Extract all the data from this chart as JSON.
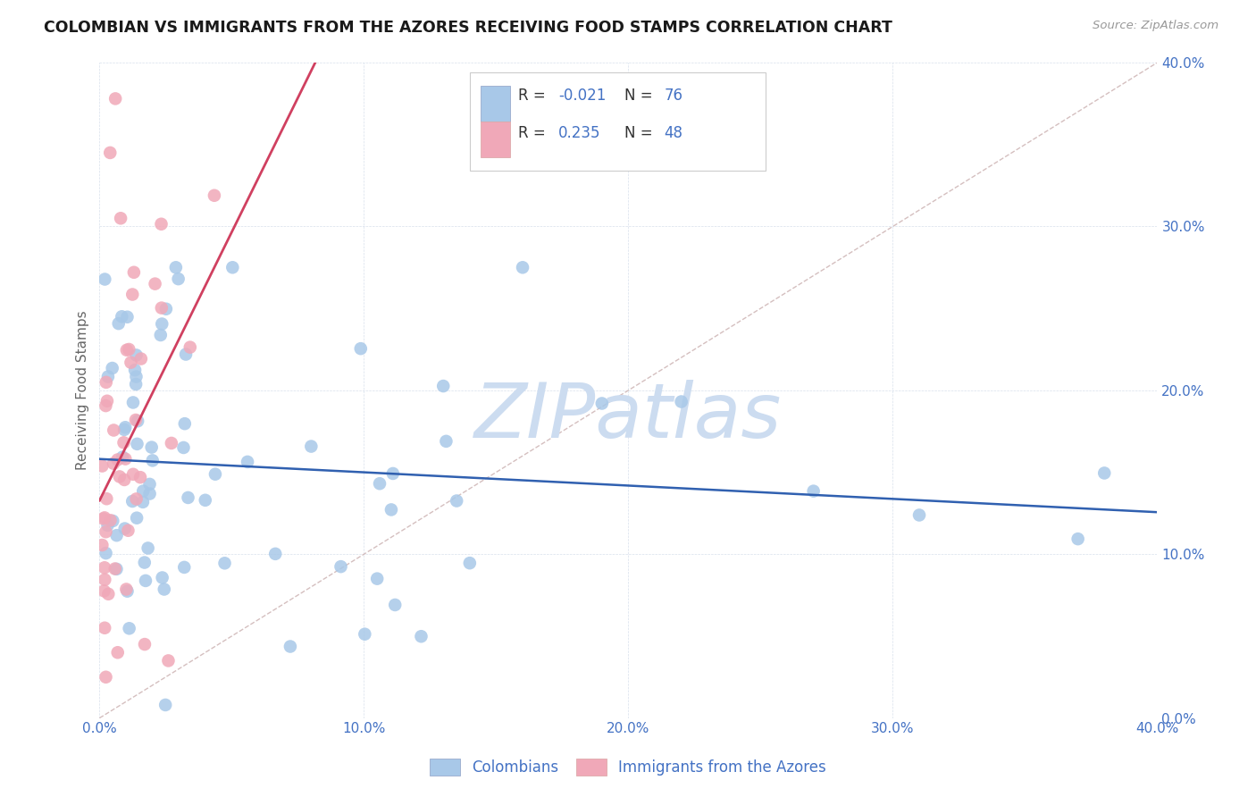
{
  "title": "COLOMBIAN VS IMMIGRANTS FROM THE AZORES RECEIVING FOOD STAMPS CORRELATION CHART",
  "source": "Source: ZipAtlas.com",
  "ylabel": "Receiving Food Stamps",
  "xlim": [
    0.0,
    0.4
  ],
  "ylim": [
    0.0,
    0.4
  ],
  "yticks": [
    0.0,
    0.1,
    0.2,
    0.3,
    0.4
  ],
  "xticks": [
    0.0,
    0.1,
    0.2,
    0.3,
    0.4
  ],
  "legend_labels": [
    "Colombians",
    "Immigrants from the Azores"
  ],
  "blue_color": "#a8c8e8",
  "pink_color": "#f0a8b8",
  "blue_line_color": "#3060b0",
  "pink_line_color": "#d04060",
  "diagonal_color": "#d0b8b8",
  "background_color": "#ffffff",
  "watermark_color": "#ccdcf0",
  "tick_color": "#4472c4",
  "grid_color": "#d8e0ec",
  "blue_scatter_seed": 123,
  "pink_scatter_seed": 456,
  "n_blue": 76,
  "n_pink": 48
}
